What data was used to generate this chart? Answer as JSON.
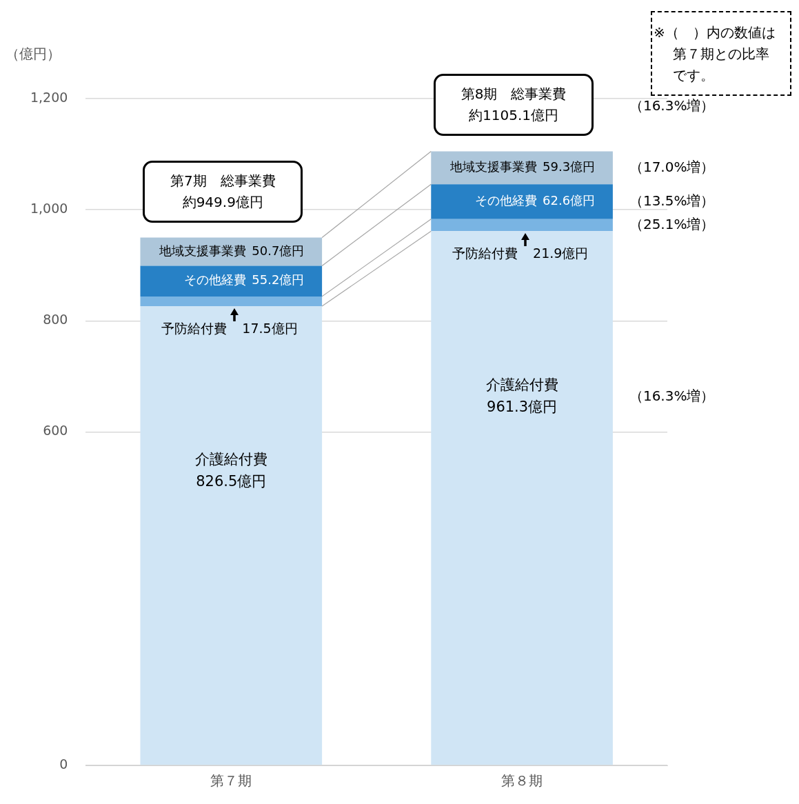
{
  "chart_data": {
    "type": "bar",
    "ylabel": "（億円）",
    "stacked": true,
    "legend": false,
    "grid": "y",
    "categories": [
      "第７期",
      "第８期"
    ],
    "ylim": [
      0,
      1200
    ],
    "yticks": [
      0,
      600,
      800,
      {
        "value": 1000,
        "label": "1,000"
      },
      {
        "value": 1200,
        "label": "1,200"
      }
    ],
    "series": [
      {
        "name": "介護給付費",
        "color": "#d0e5f5",
        "values": [
          826.5,
          961.3
        ],
        "value_labels": [
          "826.5億円",
          "961.3億円"
        ]
      },
      {
        "name": "予防給付費",
        "color": "#79b4e3",
        "values": [
          17.5,
          21.9
        ],
        "value_labels": [
          "17.5億円",
          "21.9億円"
        ]
      },
      {
        "name": "その他経費",
        "color": "#2781c6",
        "values": [
          55.2,
          62.6
        ],
        "value_labels": [
          "55.2億円",
          "62.6億円"
        ]
      },
      {
        "name": "地域支援事業費",
        "color": "#adc6da",
        "values": [
          50.7,
          59.3
        ],
        "value_labels": [
          "50.7億円",
          "59.3億円"
        ]
      }
    ],
    "totals": [
      "第7期　総事業費約949.9億円",
      "第8期　総事業費約1105.1億円"
    ],
    "annotations": [
      "※（　）内の数値は第７期との比率です。",
      "（16.3%増）",
      "（17.0%増）",
      "（13.5%増）",
      "（25.1%増）",
      "（16.3%増）"
    ]
  }
}
